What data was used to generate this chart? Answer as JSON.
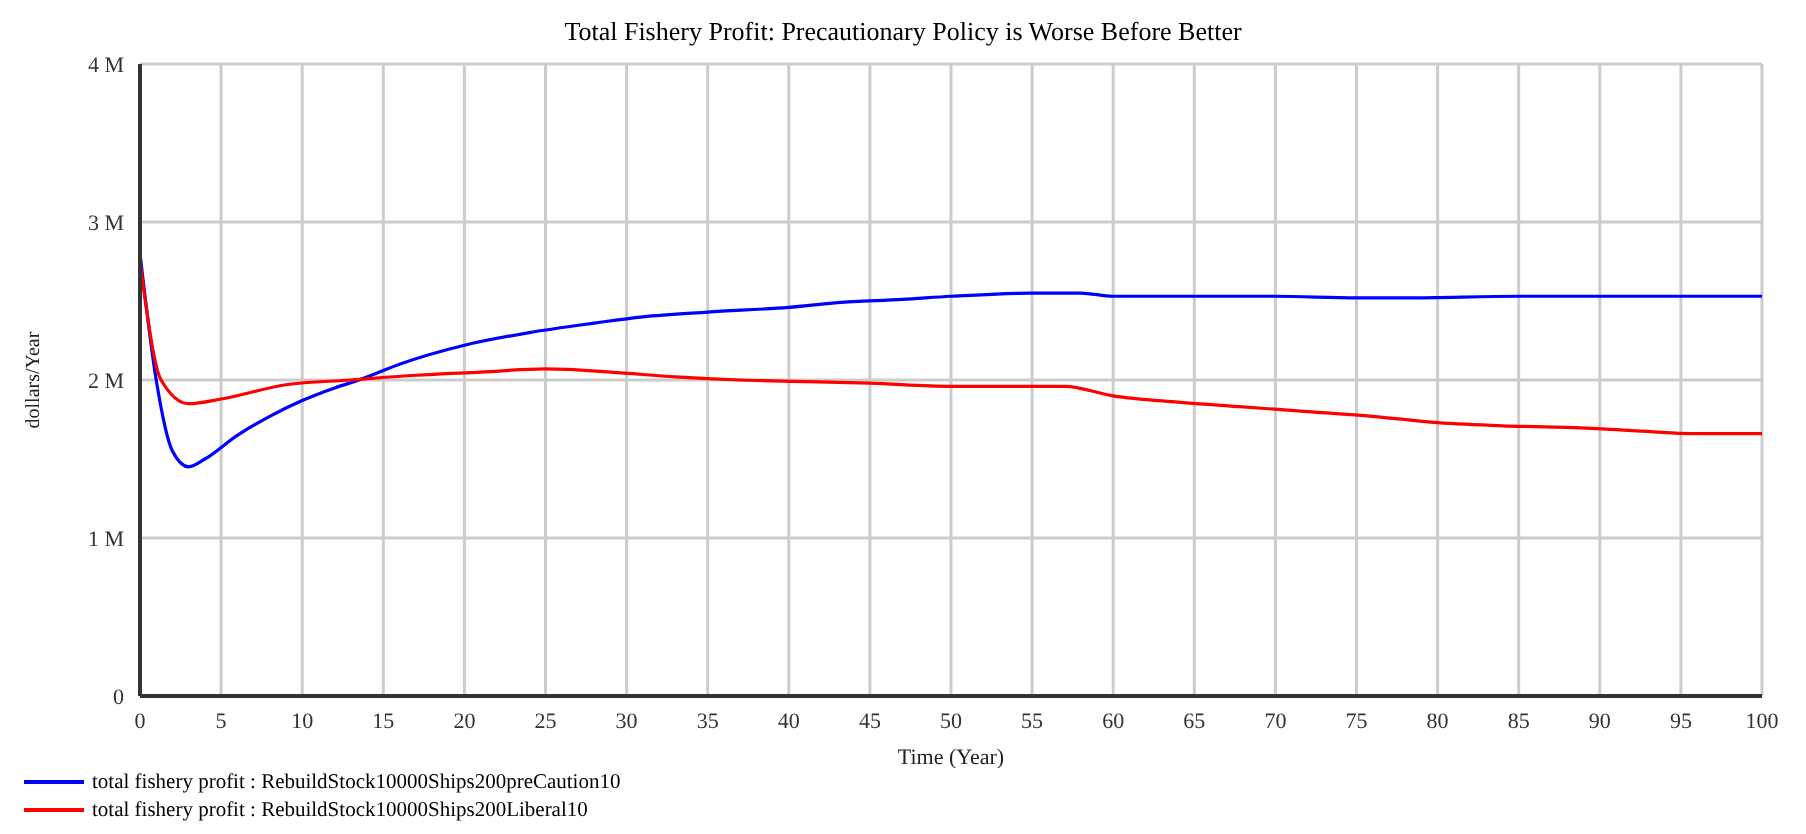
{
  "chart_data": {
    "type": "line",
    "title": "Total Fishery Profit: Precautionary Policy is Worse Before Better",
    "xlabel": "Time (Year)",
    "ylabel": "dollars/Year",
    "xlim": [
      0,
      100
    ],
    "xticks": [
      0,
      5,
      10,
      15,
      20,
      25,
      30,
      35,
      40,
      45,
      50,
      55,
      60,
      65,
      70,
      75,
      80,
      85,
      90,
      95,
      100
    ],
    "ylim": [
      0,
      4000000
    ],
    "yticks": [
      {
        "value": 0,
        "label": "0"
      },
      {
        "value": 1000000,
        "label": "1 M"
      },
      {
        "value": 2000000,
        "label": "2 M"
      },
      {
        "value": 3000000,
        "label": "3 M"
      },
      {
        "value": 4000000,
        "label": "4 M"
      }
    ],
    "grid": true,
    "legend": "bottom",
    "marker": "none",
    "line_style": "solid",
    "series": [
      {
        "name": "total fishery profit : RebuildStock10000Ships200preCaution10",
        "color": "#0000ff",
        "x": [
          0,
          1,
          2,
          3,
          4,
          6,
          8,
          10,
          12,
          13.5,
          16,
          20,
          24,
          28,
          31,
          35,
          40,
          43,
          47,
          50,
          55,
          58,
          60,
          65,
          70,
          75,
          78,
          85,
          90,
          95,
          100
        ],
        "values": [
          2800000,
          2000000,
          1550000,
          1450000,
          1500000,
          1650000,
          1770000,
          1870000,
          1950000,
          2000000,
          2100000,
          2220000,
          2300000,
          2360000,
          2400000,
          2430000,
          2460000,
          2490000,
          2510000,
          2530000,
          2550000,
          2550000,
          2530000,
          2530000,
          2530000,
          2520000,
          2520000,
          2530000,
          2530000,
          2530000,
          2530000
        ]
      },
      {
        "name": "total fishery profit : RebuildStock10000Ships200Liberal10",
        "color": "#ff0000",
        "x": [
          0,
          1.3,
          3,
          5,
          9,
          13,
          17,
          21,
          25,
          29,
          33,
          37,
          41,
          45,
          50,
          57,
          60,
          64,
          68,
          72,
          76,
          80,
          84,
          88,
          92,
          96,
          100
        ],
        "values": [
          2750000,
          2000000,
          1850000,
          1880000,
          1970000,
          2000000,
          2030000,
          2050000,
          2070000,
          2050000,
          2020000,
          2000000,
          1990000,
          1980000,
          1960000,
          1960000,
          1900000,
          1860000,
          1830000,
          1800000,
          1770000,
          1730000,
          1710000,
          1700000,
          1680000,
          1660000,
          1660000
        ]
      }
    ]
  }
}
